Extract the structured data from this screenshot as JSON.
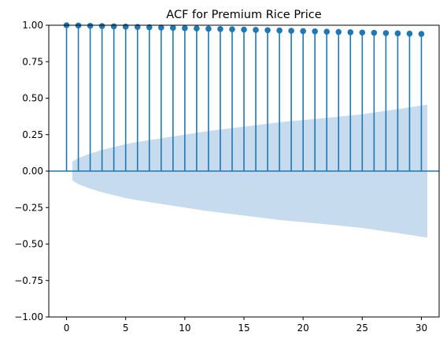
{
  "chart_data": {
    "type": "stem",
    "title": "ACF for Premium Rice Price",
    "xlabel": "",
    "ylabel": "",
    "xlim": [
      -1.5,
      31.5
    ],
    "ylim": [
      -1.0,
      1.0
    ],
    "x_ticks": [
      0,
      5,
      10,
      15,
      20,
      25,
      30
    ],
    "y_ticks": [
      -1.0,
      -0.75,
      -0.5,
      -0.25,
      0.0,
      0.25,
      0.5,
      0.75,
      1.0
    ],
    "x_tick_labels": [
      "0",
      "5",
      "10",
      "15",
      "20",
      "25",
      "30"
    ],
    "y_tick_labels": [
      "−1.00",
      "−0.75",
      "−0.50",
      "−0.25",
      "0.00",
      "0.25",
      "0.50",
      "0.75",
      "1.00"
    ],
    "lags": [
      0,
      1,
      2,
      3,
      4,
      5,
      6,
      7,
      8,
      9,
      10,
      11,
      12,
      13,
      14,
      15,
      16,
      17,
      18,
      19,
      20,
      21,
      22,
      23,
      24,
      25,
      26,
      27,
      28,
      29,
      30
    ],
    "acf": [
      1.0,
      0.998,
      0.996,
      0.994,
      0.992,
      0.99,
      0.988,
      0.986,
      0.984,
      0.982,
      0.98,
      0.978,
      0.976,
      0.974,
      0.972,
      0.97,
      0.968,
      0.966,
      0.964,
      0.962,
      0.96,
      0.958,
      0.956,
      0.954,
      0.952,
      0.95,
      0.948,
      0.946,
      0.944,
      0.942,
      0.94
    ],
    "confidence_band": {
      "lags": [
        0.5,
        1,
        2,
        3,
        4,
        5,
        6,
        8,
        10,
        12,
        15,
        18,
        20,
        22,
        25,
        28,
        30,
        30.5
      ],
      "upper": [
        0.065,
        0.09,
        0.12,
        0.145,
        0.165,
        0.185,
        0.2,
        0.225,
        0.25,
        0.275,
        0.305,
        0.335,
        0.35,
        0.365,
        0.39,
        0.425,
        0.45,
        0.455
      ]
    },
    "grid": false,
    "colors": {
      "stem": "#1f77b4",
      "band": "#c6dbee",
      "axis": "#000000"
    }
  }
}
